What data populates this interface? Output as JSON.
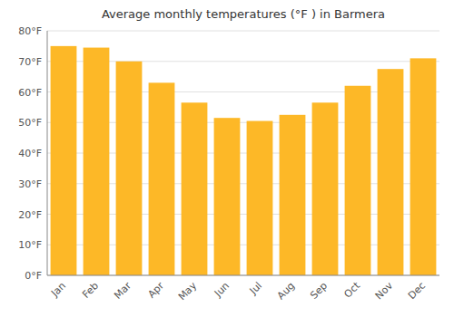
{
  "chart_data": {
    "type": "bar",
    "title": "Average monthly temperatures (°F ) in Barmera",
    "categories": [
      "Jan",
      "Feb",
      "Mar",
      "Apr",
      "May",
      "Jun",
      "Jul",
      "Aug",
      "Sep",
      "Oct",
      "Nov",
      "Dec"
    ],
    "values": [
      75,
      74.5,
      70,
      63,
      56.5,
      51.5,
      50.5,
      52.5,
      56.5,
      62,
      67.5,
      71
    ],
    "color": "#FDB827",
    "ylim": [
      0,
      80
    ],
    "yticks": [
      {
        "value": 0,
        "label": "0°F"
      },
      {
        "value": 10,
        "label": "10°F"
      },
      {
        "value": 20,
        "label": "20°F"
      },
      {
        "value": 30,
        "label": "30°F"
      },
      {
        "value": 40,
        "label": "40°F"
      },
      {
        "value": 50,
        "label": "50°F"
      },
      {
        "value": 60,
        "label": "60°F"
      },
      {
        "value": 70,
        "label": "70°F"
      },
      {
        "value": 80,
        "label": "80°F"
      }
    ],
    "grid": true
  }
}
